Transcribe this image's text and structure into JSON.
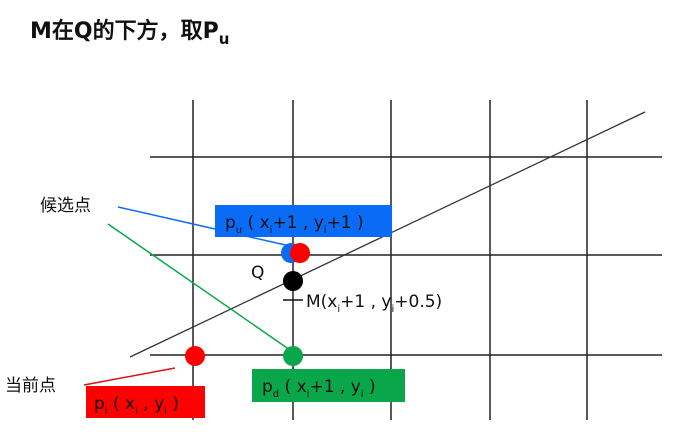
{
  "title": {
    "text": "M在Q的下方，取P",
    "sub": "u"
  },
  "labels": {
    "candidate": "候选点",
    "current": "当前点",
    "q": "Q",
    "m": {
      "pre": "M(x",
      "sub": "i",
      "mid": "+1 , y",
      "sub2": "i",
      "post": "+0.5)"
    },
    "pu": {
      "p": "p",
      "psub": "u",
      "a": " ( x",
      "s1": "i",
      "b": "+1 , y",
      "s2": "i",
      "c": "+1 )"
    },
    "pd": {
      "p": "p",
      "psub": "d",
      "a": " ( x",
      "s1": "i",
      "b": "+1 , y",
      "s2": "i",
      "c": " )"
    },
    "pi": {
      "p": "p",
      "psub": "i",
      "a": " ( x",
      "s1": "i",
      "b": " , y",
      "s2": "i",
      "c": " )"
    }
  },
  "colors": {
    "blue": "#0a6cf5",
    "red": "#ff0000",
    "green": "#0aa64a",
    "black": "#000000"
  }
}
